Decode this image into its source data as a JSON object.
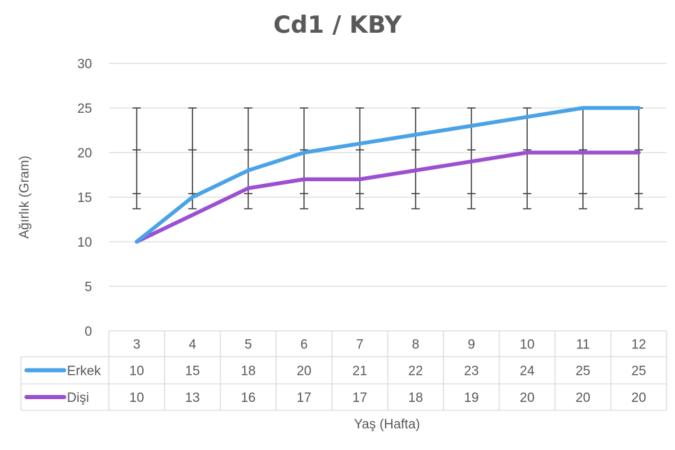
{
  "chart_data": {
    "type": "line",
    "title": "Cd1 / KBY",
    "xlabel": "Yaş (Hafta)",
    "ylabel": "Ağırlık (Gram)",
    "ylim": [
      0,
      30
    ],
    "yticks": [
      0,
      5,
      10,
      15,
      20,
      25,
      30
    ],
    "categories": [
      "3",
      "4",
      "5",
      "6",
      "7",
      "8",
      "9",
      "10",
      "11",
      "12"
    ],
    "series": [
      {
        "name": "Erkek",
        "values": [
          10,
          15,
          18,
          20,
          21,
          22,
          23,
          24,
          25,
          25
        ],
        "color": "#4aa3e6"
      },
      {
        "name": "Dişi",
        "values": [
          10,
          13,
          16,
          17,
          17,
          18,
          19,
          20,
          20,
          20
        ],
        "color": "#9b4fd1"
      }
    ],
    "error_bars": {
      "low": 13.7,
      "mid_low": 15.4,
      "mid_high": 20.3,
      "high": 25,
      "color": "#404040"
    },
    "grid": true,
    "data_table": true
  }
}
